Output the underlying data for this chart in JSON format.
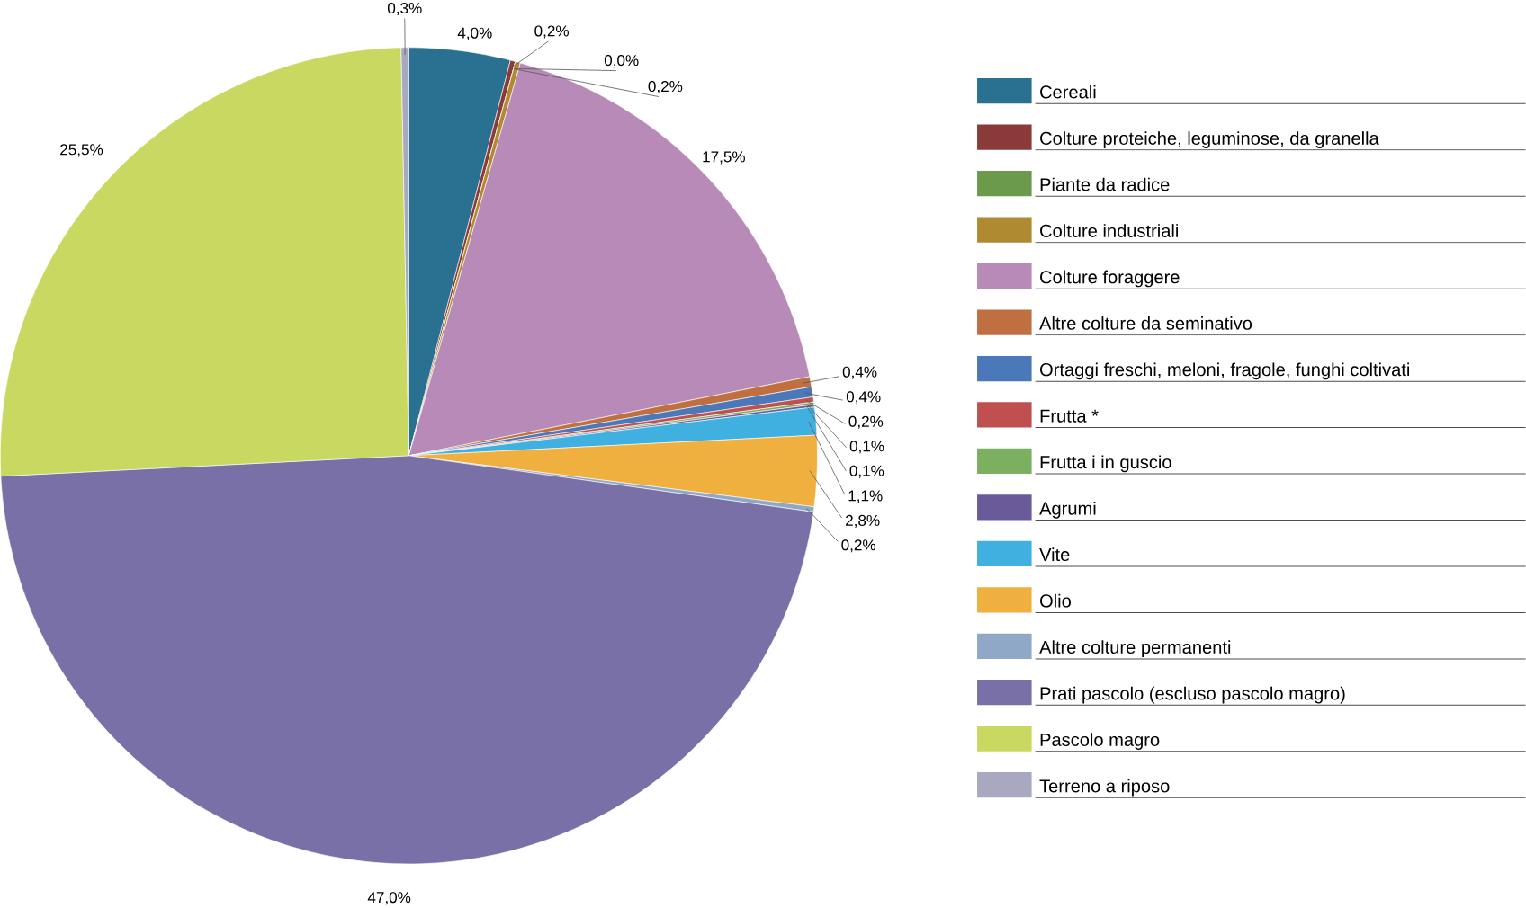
{
  "chart_data": {
    "type": "pie",
    "categories": [
      "Cereali",
      "Colture proteiche, leguminose, da granella",
      "Piante da radice",
      "Colture industriali",
      "Colture foraggere",
      "Altre colture da seminativo",
      "Ortaggi freschi, meloni, fragole, funghi coltivati",
      "Frutta *",
      "Frutta i in guscio",
      "Agrumi",
      "Vite",
      "Olio",
      "Altre colture permanenti",
      "Prati pascolo (escluso pascolo magro)",
      "Pascolo magro",
      "Terreno a riposo"
    ],
    "values": [
      4.0,
      0.2,
      0.0,
      0.2,
      17.5,
      0.4,
      0.4,
      0.2,
      0.1,
      0.1,
      1.1,
      2.8,
      0.2,
      47.0,
      25.5,
      0.3
    ],
    "value_labels": [
      "4,0%",
      "0,2%",
      "0,0%",
      "0,2%",
      "17,5%",
      "0,4%",
      "0,4%",
      "0,2%",
      "0,1%",
      "0,1%",
      "1,1%",
      "2,8%",
      "0,2%",
      "47,0%",
      "25,5%",
      "0,3%"
    ],
    "colors": [
      "#2a7090",
      "#8b3a3a",
      "#6a9a4a",
      "#b08a30",
      "#b88ab8",
      "#c07040",
      "#4a78b8",
      "#c05050",
      "#7ab060",
      "#6a5a9a",
      "#40b0e0",
      "#f0b040",
      "#90a8c8",
      "#7a70a8",
      "#c8d860",
      "#a8a8c0"
    ],
    "legend": "right"
  }
}
